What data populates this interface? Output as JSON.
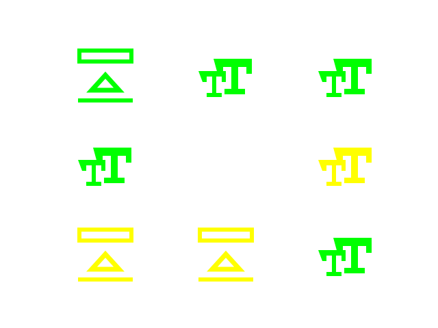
{
  "colors": {
    "green": "#00ff00",
    "yellow": "#ffff00",
    "background": "#ffffff"
  },
  "grid": {
    "rows": 3,
    "cols": 3
  },
  "cells": [
    {
      "row": 1,
      "col": 1,
      "icon": "eject-icon",
      "color": "#00ff00"
    },
    {
      "row": 1,
      "col": 2,
      "icon": "font-size-icon",
      "color": "#00ff00"
    },
    {
      "row": 1,
      "col": 3,
      "icon": "font-size-icon",
      "color": "#00ff00"
    },
    {
      "row": 2,
      "col": 1,
      "icon": "font-size-icon",
      "color": "#00ff00"
    },
    {
      "row": 2,
      "col": 2,
      "icon": "empty",
      "color": ""
    },
    {
      "row": 2,
      "col": 3,
      "icon": "font-size-icon",
      "color": "#ffff00"
    },
    {
      "row": 3,
      "col": 1,
      "icon": "eject-icon",
      "color": "#ffff00"
    },
    {
      "row": 3,
      "col": 2,
      "icon": "eject-icon",
      "color": "#ffff00"
    },
    {
      "row": 3,
      "col": 3,
      "icon": "font-size-icon",
      "color": "#00ff00"
    }
  ]
}
